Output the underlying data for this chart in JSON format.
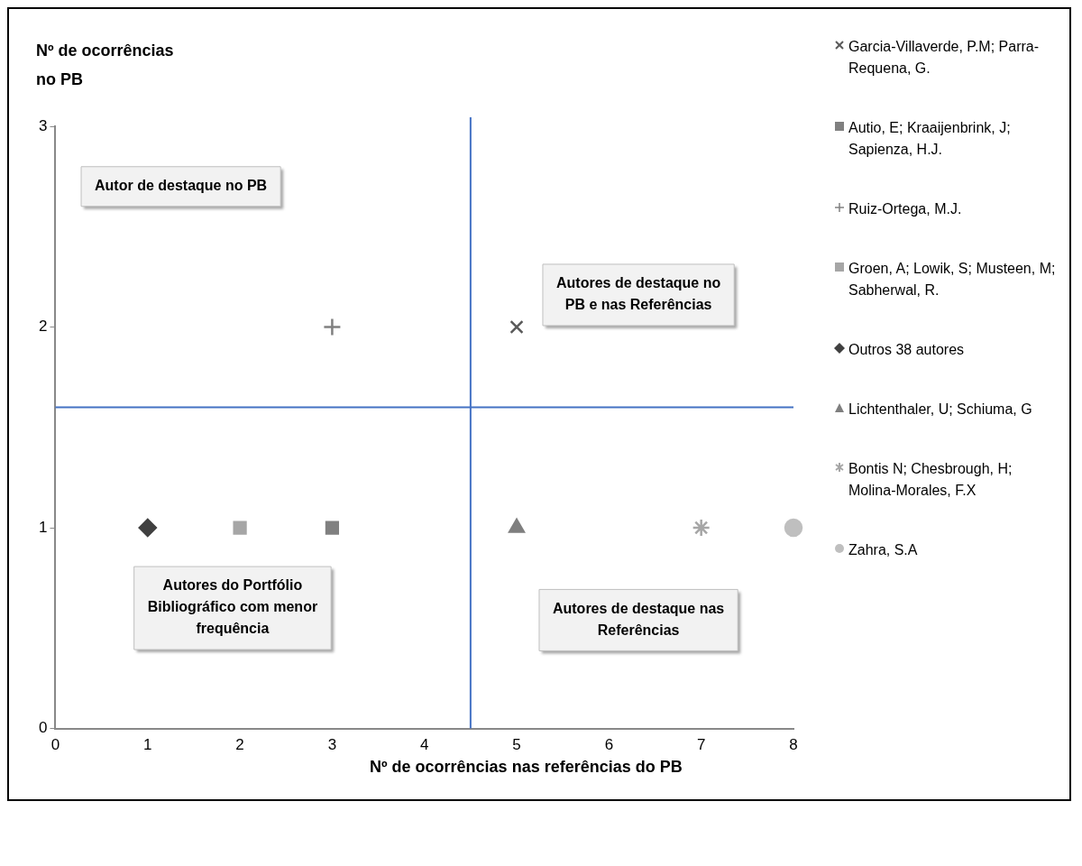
{
  "chart_data": {
    "type": "scatter",
    "xlabel": "Nº de ocorrências nas referências do PB",
    "ylabel": "Nº de ocorrências no PB",
    "xlim": [
      0,
      8
    ],
    "xticks": [
      0,
      1,
      2,
      3,
      4,
      5,
      6,
      7,
      8
    ],
    "ylim": [
      0,
      3
    ],
    "yticks": [
      0,
      1,
      2,
      3
    ],
    "grid": false,
    "legend": "right",
    "series": [
      {
        "name": "Garcia-Villaverde, P.M; Parra-Requena, G.",
        "color": "#595959",
        "marker": "cross",
        "x": [
          5
        ],
        "values": [
          2
        ]
      },
      {
        "name": "Autio, E; Kraaijenbrink, J; Sapienza, H.J.",
        "color": "#808080",
        "marker": "square",
        "x": [
          3
        ],
        "values": [
          1
        ]
      },
      {
        "name": "Ruiz-Ortega, M.J.",
        "color": "#808080",
        "marker": "plus",
        "x": [
          3
        ],
        "values": [
          2
        ]
      },
      {
        "name": "Groen, A; Lowik, S; Musteen, M; Sabherwal, R.",
        "color": "#a6a6a6",
        "marker": "square",
        "x": [
          2
        ],
        "values": [
          1
        ]
      },
      {
        "name": "Outros 38 autores",
        "color": "#404040",
        "marker": "diamond",
        "x": [
          1
        ],
        "values": [
          1
        ]
      },
      {
        "name": "Lichtenthaler, U; Schiuma, G",
        "color": "#7f7f7f",
        "marker": "triangle",
        "x": [
          5
        ],
        "values": [
          1
        ]
      },
      {
        "name": "Bontis N; Chesbrough, H; Molina-Morales, F.X",
        "color": "#a6a6a6",
        "x": [
          7
        ],
        "values": [
          1
        ]
      },
      {
        "name": "Zahra, S.A",
        "color": "#bfbfbf",
        "marker": "circle",
        "x": [
          8
        ],
        "values": [
          1
        ]
      }
    ],
    "ref_lines": [
      {
        "axis": "x",
        "value": 4.5,
        "color": "#4472c4"
      },
      {
        "axis": "y",
        "value": 1.6,
        "color": "#4472c4"
      }
    ],
    "annotations": [
      "Autor de destaque no PB",
      "Autores de destaque no PB e nas Referências",
      "Autores do Portfólio Bibliográfico com menor frequência",
      "Autores de destaque nas Referências"
    ]
  }
}
